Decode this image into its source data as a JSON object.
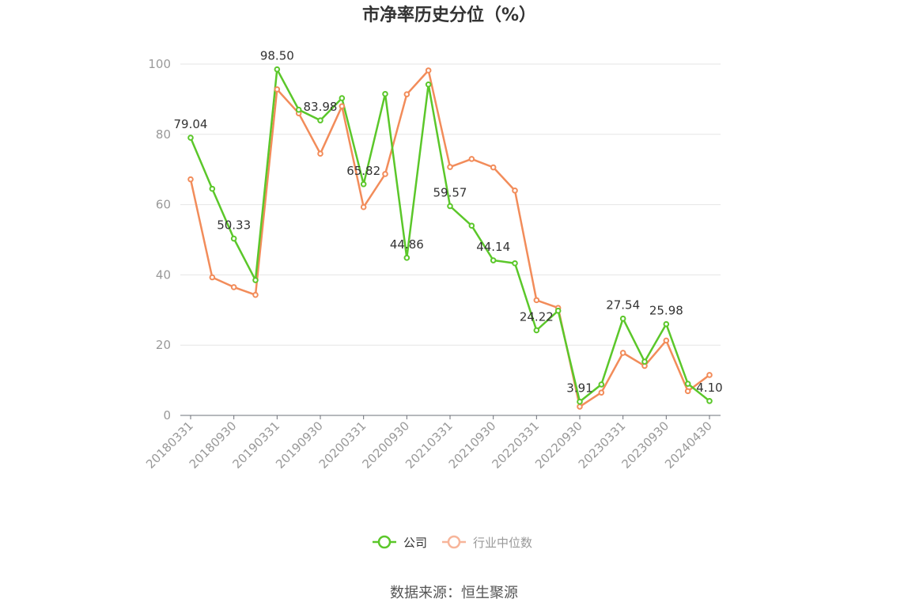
{
  "chart_data": {
    "type": "line",
    "title": "市净率历史分位（%）",
    "ylim": [
      0,
      100
    ],
    "yticks": [
      0,
      20,
      40,
      60,
      80,
      100
    ],
    "grid": true,
    "legend_position": "bottom-center",
    "x": [
      "20180331",
      "20180630",
      "20180930",
      "20181231",
      "20190331",
      "20190630",
      "20190930",
      "20191231",
      "20200331",
      "20200630",
      "20200930",
      "20201231",
      "20210331",
      "20210630",
      "20210930",
      "20211231",
      "20220331",
      "20220630",
      "20220930",
      "20221231",
      "20230331",
      "20230630",
      "20230930",
      "20231231",
      "20240430"
    ],
    "xtick_labels": [
      "20180331",
      "20180930",
      "20190331",
      "20190930",
      "20200331",
      "20200930",
      "20210331",
      "20210930",
      "20220331",
      "20220930",
      "20230331",
      "20230930",
      "20240430"
    ],
    "series": [
      {
        "name": "公司",
        "color": "#5bc72a",
        "values": [
          79.04,
          64.5,
          50.33,
          38.5,
          98.5,
          87.0,
          83.98,
          90.3,
          65.82,
          91.5,
          44.86,
          94.2,
          59.57,
          54.0,
          44.14,
          43.3,
          24.22,
          29.8,
          3.91,
          8.8,
          27.54,
          15.3,
          25.98,
          9.0,
          4.1
        ],
        "labels": {
          "0": "79.04",
          "2": "50.33",
          "4": "98.50",
          "6": "83.98",
          "8": "65.82",
          "10": "44.86",
          "12": "59.57",
          "14": "44.14",
          "16": "24.22",
          "18": "3.91",
          "20": "27.54",
          "22": "25.98",
          "24": "4.10"
        }
      },
      {
        "name": "行业中位数",
        "color": "#f28c5a",
        "values": [
          67.2,
          39.3,
          36.5,
          34.3,
          92.8,
          86.0,
          74.5,
          88.0,
          59.3,
          68.7,
          91.4,
          98.2,
          70.7,
          73.0,
          70.6,
          64.0,
          32.8,
          30.6,
          2.5,
          6.5,
          17.8,
          14.1,
          21.3,
          6.9,
          11.5
        ]
      }
    ]
  },
  "source_text": "数据来源：恒生聚源"
}
